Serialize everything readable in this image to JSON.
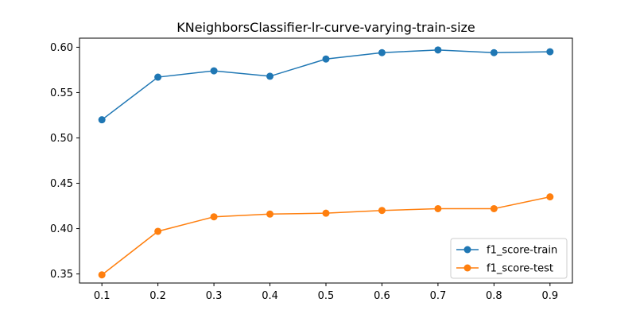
{
  "chart_data": {
    "type": "line",
    "title": "KNeighborsClassifier-lr-curve-varying-train-size",
    "xlabel": "",
    "ylabel": "",
    "x": [
      0.1,
      0.2,
      0.3,
      0.4,
      0.5,
      0.6,
      0.7,
      0.8,
      0.9
    ],
    "x_ticks": [
      "0.1",
      "0.2",
      "0.3",
      "0.4",
      "0.5",
      "0.6",
      "0.7",
      "0.8",
      "0.9"
    ],
    "y_ticks": [
      "0.35",
      "0.40",
      "0.45",
      "0.50",
      "0.55",
      "0.60"
    ],
    "xlim": [
      0.06,
      0.94
    ],
    "ylim": [
      0.34,
      0.61
    ],
    "grid": false,
    "legend_position": "lower-right",
    "series": [
      {
        "name": "f1_score-train",
        "color": "#1f77b4",
        "values": [
          0.52,
          0.567,
          0.574,
          0.568,
          0.587,
          0.594,
          0.597,
          0.594,
          0.595
        ]
      },
      {
        "name": "f1_score-test",
        "color": "#ff7f0e",
        "values": [
          0.349,
          0.397,
          0.413,
          0.416,
          0.417,
          0.42,
          0.422,
          0.422,
          0.435
        ]
      }
    ]
  }
}
